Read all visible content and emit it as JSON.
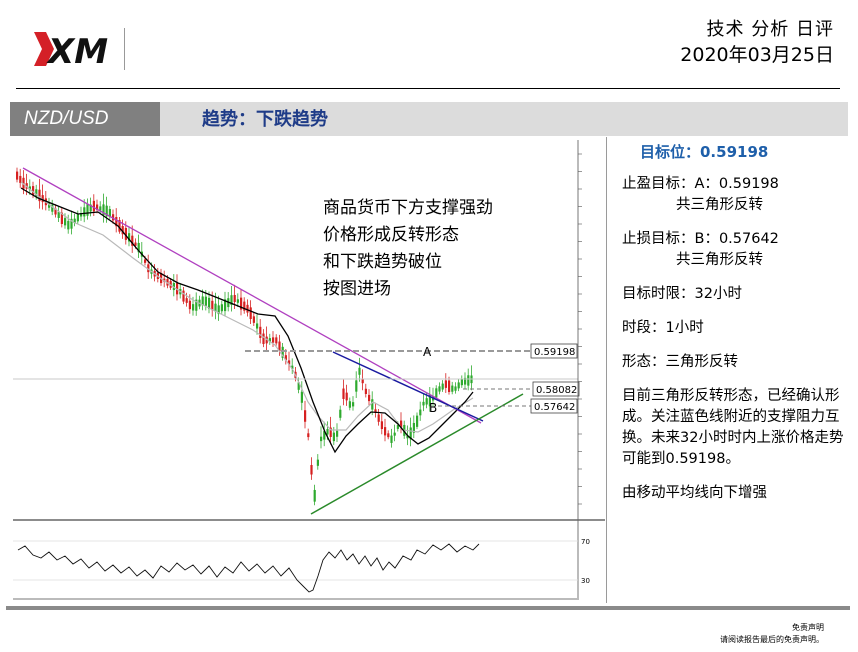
{
  "header": {
    "title": "技术 分析 日评",
    "date": "2020年03月25日"
  },
  "banner": {
    "pair": "NZD/USD",
    "trend": "趋势：下跌趋势"
  },
  "chart": {
    "callout": [
      "商品货币下方支撑强劲",
      "价格形成反转形态",
      "和下跌趋势破位",
      "按图进场"
    ],
    "label_a": "A",
    "label_b": "B",
    "price_a": "0.59198",
    "price_current": "0.58082",
    "price_b": "0.57642",
    "osc_high": "70",
    "osc_low": "30"
  },
  "side": {
    "target": "目标位：0.59198",
    "tp_line1": "止盈目标：A：0.59198",
    "tp_line2": "共三角形反转",
    "sl_line1": "止损目标：B：0.57642",
    "sl_line2": "共三角形反转",
    "time_limit": "目标时限：32小时",
    "timeframe": "时段：1小时",
    "pattern": "形态：三角形反转",
    "analysis": "目前三角形反转形态，已经确认形成。关注蓝色线附近的支撑阻力互换。未来32小时时内上涨价格走势可能到0.59198。",
    "ma_note": "由移动平均线向下增强"
  },
  "disclaimer": {
    "title": "免责声明",
    "text": "请阅读报告最后的免责声明。"
  },
  "colors": {
    "banner_gray": "#808080",
    "trend_text": "#1f3c88",
    "target_text": "#1e5faa",
    "candle_up": "#2eaa2e",
    "candle_down": "#d62020",
    "downtrend_line": "#b040c0",
    "upper_triangle_line": "#1a1aa0",
    "support_line": "#2a8a2a"
  }
}
